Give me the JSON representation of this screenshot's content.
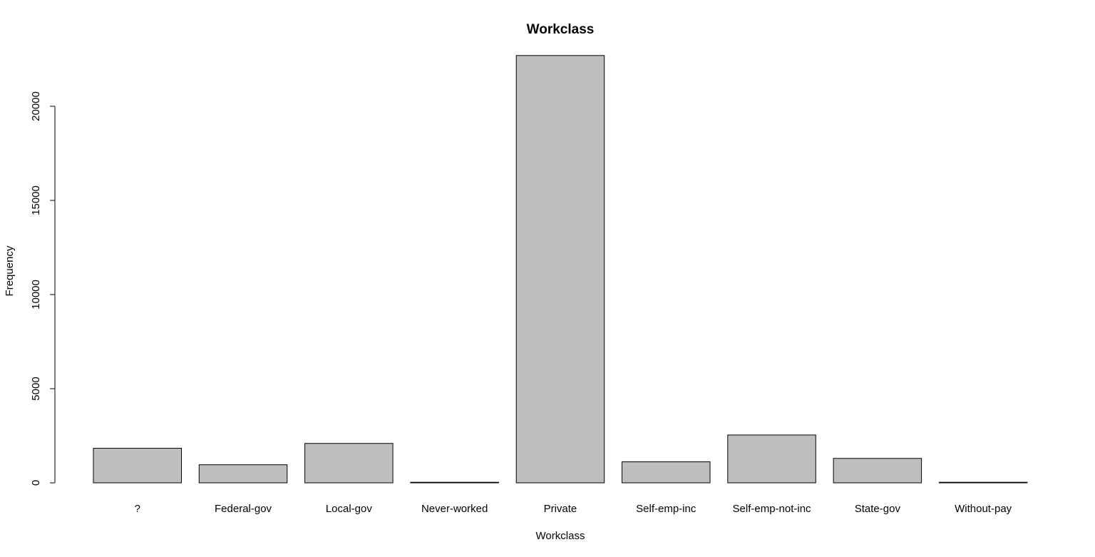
{
  "chart_data": {
    "type": "bar",
    "title": "Workclass",
    "xlabel": "Workclass",
    "ylabel": "Frequency",
    "categories": [
      "?",
      "Federal-gov",
      "Local-gov",
      "Never-worked",
      "Private",
      "Self-emp-inc",
      "Self-emp-not-inc",
      "State-gov",
      "Without-pay"
    ],
    "values": [
      1836,
      960,
      2093,
      7,
      22696,
      1116,
      2541,
      1298,
      14
    ],
    "yticks": [
      0,
      5000,
      10000,
      15000,
      20000
    ],
    "ylim": [
      0,
      22696
    ],
    "bar_color": "#bebebe",
    "grid": false,
    "legend": "none"
  }
}
